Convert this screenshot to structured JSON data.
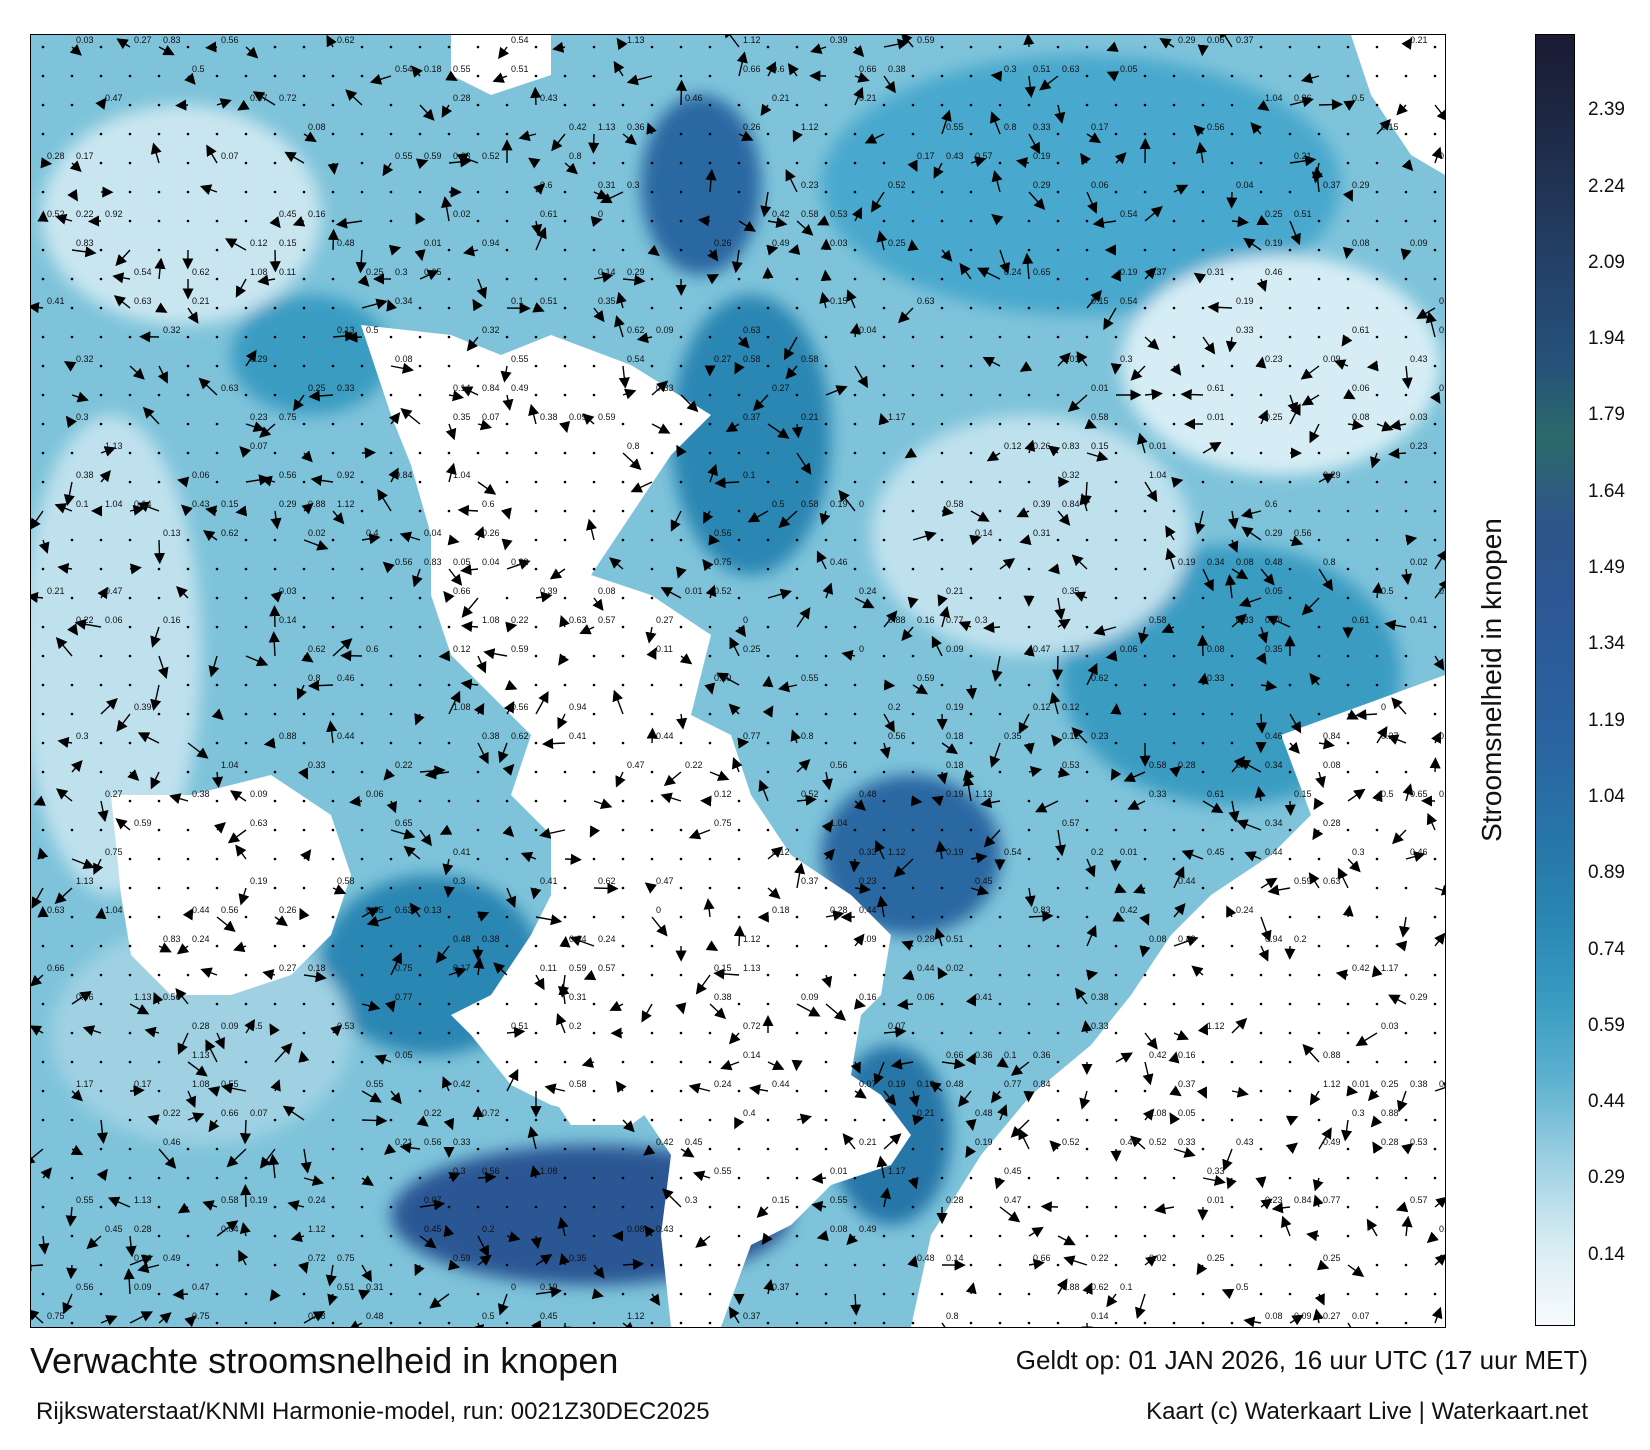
{
  "map": {
    "title": "Verwachte stroomsnelheid in knopen",
    "subtitle": "Rijkswaterstaat/KNMI Harmonie-model, run: 0021Z30DEC2025",
    "validity": "Geldt op: 01 JAN 2026, 16 uur UTC (17 uur MET)",
    "credit": "Kaart (c) Waterkaart Live | Waterkaart.net"
  },
  "colorbar": {
    "title": "Stroomsnelheid in knopen",
    "ticks": [
      "0.14",
      "0.29",
      "0.44",
      "0.59",
      "0.74",
      "0.89",
      "1.04",
      "1.19",
      "1.34",
      "1.49",
      "1.64",
      "1.79",
      "1.94",
      "2.09",
      "2.24",
      "2.39"
    ],
    "tick_values": [
      0.14,
      0.29,
      0.44,
      0.59,
      0.74,
      0.89,
      1.04,
      1.19,
      1.34,
      1.49,
      1.64,
      1.79,
      1.94,
      2.09,
      2.24,
      2.39
    ],
    "range": [
      0,
      2.54
    ],
    "colors": [
      "#f7fbfd",
      "#d7ecf3",
      "#9fd1e3",
      "#5fb2d0",
      "#3a9cc2",
      "#2a86b2",
      "#2776a8",
      "#2a67a2",
      "#2b5e9c",
      "#2c5794",
      "#2e5689",
      "#2b6a6a",
      "#25507a",
      "#24436a",
      "#213557",
      "#1d2742",
      "#1a1a33"
    ]
  },
  "sample_labels": [
    "0.26",
    "0.15",
    "0.12",
    "0.22",
    "0.21",
    "0.19",
    "0.18",
    "0.17",
    "0.11",
    "0.09",
    "0.07",
    "0.08",
    "0.13",
    "0.1",
    "0.3",
    "0.35",
    "0.38",
    "0.36",
    "0.39",
    "0.41",
    "0.42",
    "0.45",
    "0.47",
    "0.52",
    "0.55",
    "0.59",
    "0.61",
    "0.63",
    "0.72",
    "0.77",
    "0.8",
    "0.84",
    "0.88",
    "0.94",
    "1.04",
    "1.12",
    "1.13",
    "1.17",
    "0.05",
    "0.04",
    "0.03",
    "0.02",
    "0.01",
    "0",
    "0.24",
    "0.28",
    "0.31",
    "0.33",
    "0.43",
    "0.5",
    "0.57",
    "0.65",
    "0.75",
    "0.83",
    "0.92",
    "1.08",
    "0.06",
    "0.14",
    "0.16",
    "0.2",
    "0.23",
    "0.25",
    "0.27",
    "0.29",
    "0.32",
    "0.34",
    "0.37",
    "0.4",
    "0.44",
    "0.46",
    "0.48",
    "0.49",
    "0.51",
    "0.53",
    "0.54",
    "0.56",
    "0.58",
    "0.6",
    "0.62",
    "0.66"
  ]
}
